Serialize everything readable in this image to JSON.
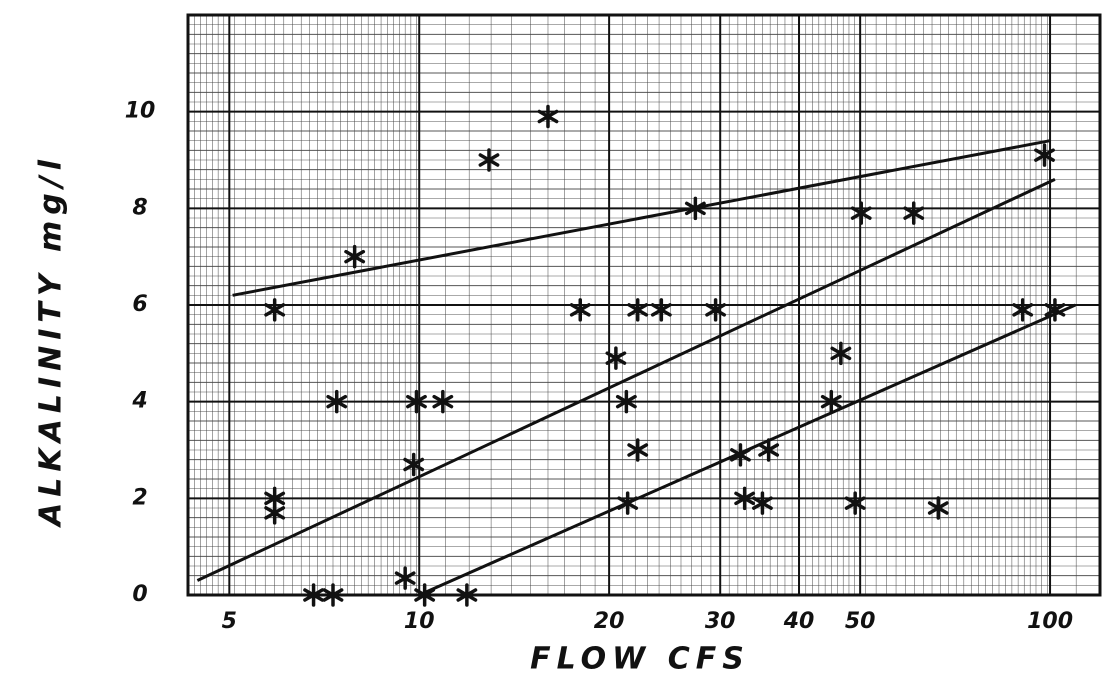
{
  "chart_data": {
    "type": "scatter",
    "xlabel": "FLOW CFS",
    "ylabel": "ALKALINITY mg/l",
    "log_x": true,
    "xlim": [
      4.3,
      120
    ],
    "ylim": [
      0,
      12
    ],
    "xticks": [
      5,
      10,
      20,
      30,
      40,
      50,
      100
    ],
    "yticks": [
      0,
      2,
      4,
      6,
      8,
      10
    ],
    "grid": true,
    "color": "#111111",
    "points": {
      "x": [
        16.0,
        12.9,
        7.9,
        5.9,
        7.4,
        9.9,
        10.9,
        9.8,
        5.9,
        5.9,
        6.8,
        7.3,
        9.5,
        10.2,
        11.9,
        18.0,
        20.5,
        21.3,
        22.2,
        22.2,
        24.2,
        21.4,
        27.4,
        29.5,
        32.3,
        35.8,
        32.8,
        35.0,
        46.6,
        45.0,
        50.2,
        49.1,
        60.8,
        66.5,
        90.5,
        101.8,
        98
      ],
      "y": [
        9.9,
        9.0,
        7.0,
        5.9,
        4.0,
        4.0,
        4.0,
        2.7,
        2.0,
        1.7,
        0,
        0,
        0.35,
        0,
        0,
        5.9,
        4.9,
        4.0,
        3.0,
        5.9,
        5.9,
        1.9,
        8.0,
        5.9,
        2.9,
        3.0,
        2.0,
        1.9,
        5.0,
        4.0,
        7.9,
        1.9,
        7.9,
        1.8,
        5.9,
        5.9,
        9.1
      ]
    },
    "trend_lines": [
      {
        "x": [
          5.06,
          100
        ],
        "y": [
          6.2,
          9.4
        ]
      },
      {
        "x": [
          4.45,
          101.8
        ],
        "y": [
          0.3,
          8.6
        ]
      },
      {
        "x": [
          10,
          109.7
        ],
        "y": [
          0,
          6.0
        ]
      }
    ]
  }
}
